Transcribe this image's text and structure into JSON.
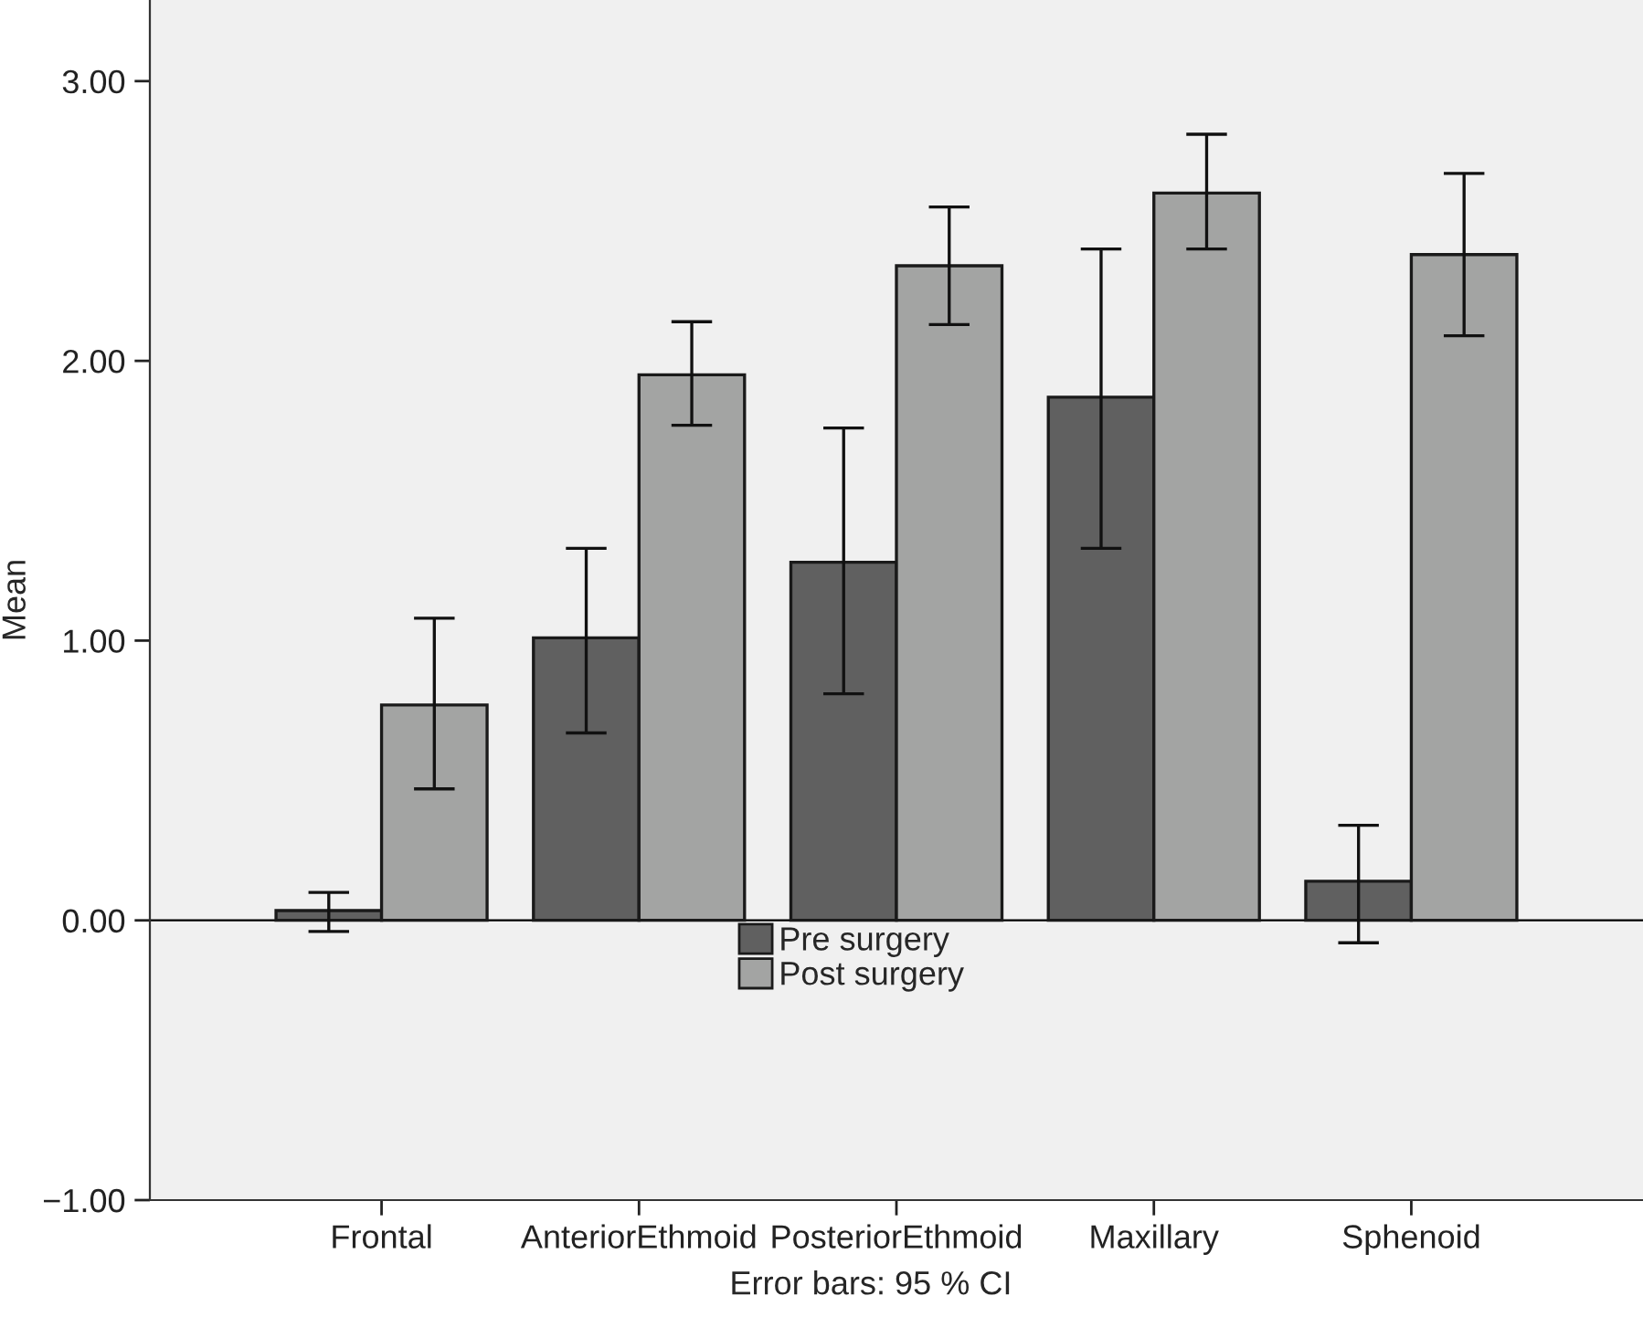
{
  "chart_data": {
    "type": "bar",
    "ylabel": "Mean",
    "categories": [
      "Frontal",
      "AnteriorEthmoid",
      "PosteriorEthmoid",
      "Maxillary",
      "Sphenoid"
    ],
    "series": [
      {
        "name": "Pre surgery",
        "color": "#606060",
        "values": [
          0.035,
          1.01,
          1.28,
          1.87,
          0.14
        ],
        "errors": [
          [
            -0.04,
            0.1
          ],
          [
            0.67,
            1.33
          ],
          [
            0.81,
            1.76
          ],
          [
            1.33,
            2.4
          ],
          [
            -0.08,
            0.34
          ]
        ]
      },
      {
        "name": "Post surgery",
        "color": "#a3a4a3",
        "values": [
          0.77,
          1.95,
          2.34,
          2.6,
          2.38
        ],
        "errors": [
          [
            0.47,
            1.08
          ],
          [
            1.77,
            2.14
          ],
          [
            2.13,
            2.55
          ],
          [
            2.4,
            2.81
          ],
          [
            2.09,
            2.67
          ]
        ]
      }
    ],
    "ylim": [
      -1.0,
      3.29
    ],
    "yticks": [
      {
        "value": -1,
        "label": "−1.00"
      },
      {
        "value": 0,
        "label": "0.00"
      },
      {
        "value": 1,
        "label": "1.00"
      },
      {
        "value": 2,
        "label": "2.00"
      },
      {
        "value": 3,
        "label": "3.00"
      }
    ],
    "ref_lines": [
      {
        "axis": "y",
        "value": 0,
        "label": null,
        "color": "#000000"
      }
    ],
    "grid": false,
    "legend": "bottom",
    "annotations": [
      "Error bars: 95 % CI"
    ]
  }
}
